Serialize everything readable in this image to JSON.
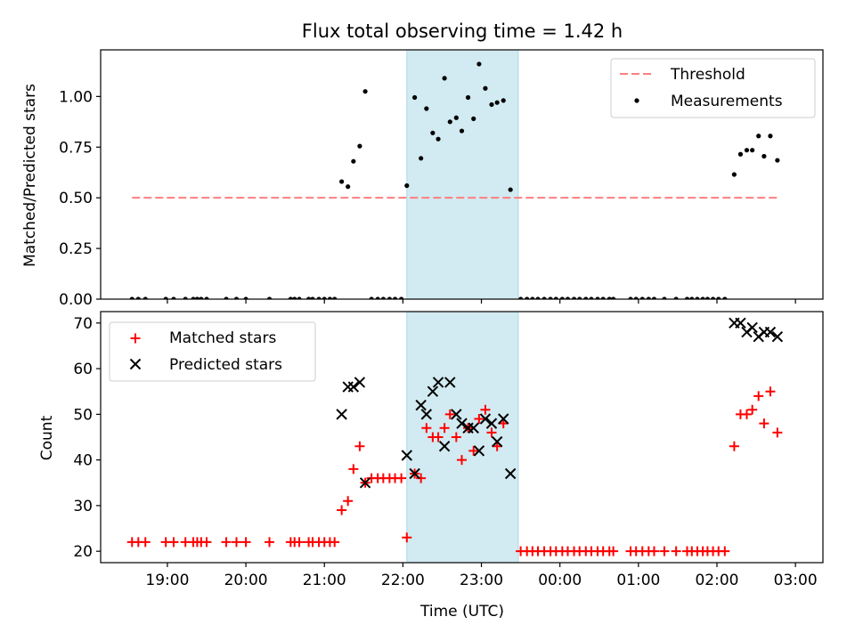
{
  "chart_data": {
    "title": "Flux total observing time = 1.42 h",
    "xlabel": "Time (UTC)",
    "x_ticks": [
      "19:00",
      "20:00",
      "21:00",
      "22:00",
      "23:00",
      "00:00",
      "01:00",
      "02:00",
      "03:00"
    ],
    "x_tick_hours": [
      19,
      20,
      21,
      22,
      23,
      24,
      25,
      26,
      27
    ],
    "xlim_hours": [
      18.15,
      27.35
    ],
    "shaded_region_hours": [
      22.05,
      23.47
    ],
    "colors": {
      "shade": "#add8e6",
      "threshold": "#ff7f7f",
      "matched": "#ff0000",
      "predicted": "#000000",
      "measurement": "#000000"
    },
    "top": {
      "type": "scatter",
      "ylabel": "Matched/Predicted stars",
      "ylim": [
        0,
        1.23
      ],
      "y_ticks": [
        "0.00",
        "0.25",
        "0.50",
        "0.75",
        "1.00"
      ],
      "y_tick_values": [
        0,
        0.25,
        0.5,
        0.75,
        1.0
      ],
      "threshold": {
        "name": "Threshold",
        "value": 0.5,
        "x_range_hours": [
          18.55,
          26.8
        ]
      },
      "legend": [
        "Threshold",
        "Measurements"
      ],
      "legend_position": "top-right",
      "series": [
        {
          "name": "Measurements",
          "points": [
            [
              18.55,
              0
            ],
            [
              18.63,
              0
            ],
            [
              18.72,
              0
            ],
            [
              18.98,
              0
            ],
            [
              19.08,
              0
            ],
            [
              19.23,
              0
            ],
            [
              19.33,
              0
            ],
            [
              19.38,
              0
            ],
            [
              19.43,
              0
            ],
            [
              19.5,
              0
            ],
            [
              19.75,
              0
            ],
            [
              19.88,
              0
            ],
            [
              20.0,
              0
            ],
            [
              20.3,
              0
            ],
            [
              20.57,
              0
            ],
            [
              20.62,
              0
            ],
            [
              20.68,
              0
            ],
            [
              20.8,
              0
            ],
            [
              20.85,
              0
            ],
            [
              20.93,
              0
            ],
            [
              21.0,
              0
            ],
            [
              21.07,
              0
            ],
            [
              21.13,
              0
            ],
            [
              21.22,
              0.58
            ],
            [
              21.3,
              0.555
            ],
            [
              21.37,
              0.68
            ],
            [
              21.45,
              0.755
            ],
            [
              21.52,
              1.025
            ],
            [
              21.6,
              0
            ],
            [
              21.68,
              0
            ],
            [
              21.75,
              0
            ],
            [
              21.83,
              0
            ],
            [
              21.9,
              0
            ],
            [
              21.98,
              0
            ],
            [
              22.05,
              0.56
            ],
            [
              22.15,
              0.995
            ],
            [
              22.23,
              0.695
            ],
            [
              22.3,
              0.94
            ],
            [
              22.38,
              0.82
            ],
            [
              22.45,
              0.79
            ],
            [
              22.53,
              1.09
            ],
            [
              22.6,
              0.875
            ],
            [
              22.68,
              0.895
            ],
            [
              22.75,
              0.83
            ],
            [
              22.83,
              0.995
            ],
            [
              22.9,
              0.89
            ],
            [
              22.97,
              1.16
            ],
            [
              23.05,
              1.04
            ],
            [
              23.13,
              0.96
            ],
            [
              23.2,
              0.97
            ],
            [
              23.28,
              0.98
            ],
            [
              23.37,
              0.54
            ],
            [
              23.5,
              0
            ],
            [
              23.58,
              0
            ],
            [
              23.65,
              0
            ],
            [
              23.72,
              0
            ],
            [
              23.8,
              0
            ],
            [
              23.88,
              0
            ],
            [
              23.95,
              0
            ],
            [
              24.03,
              0
            ],
            [
              24.1,
              0
            ],
            [
              24.18,
              0
            ],
            [
              24.25,
              0
            ],
            [
              24.33,
              0
            ],
            [
              24.4,
              0
            ],
            [
              24.48,
              0
            ],
            [
              24.55,
              0
            ],
            [
              24.63,
              0
            ],
            [
              24.68,
              0
            ],
            [
              24.9,
              0
            ],
            [
              24.97,
              0
            ],
            [
              25.05,
              0
            ],
            [
              25.13,
              0
            ],
            [
              25.2,
              0
            ],
            [
              25.33,
              0
            ],
            [
              25.48,
              0
            ],
            [
              25.62,
              0
            ],
            [
              25.68,
              0
            ],
            [
              25.75,
              0
            ],
            [
              25.82,
              0
            ],
            [
              25.88,
              0
            ],
            [
              25.95,
              0
            ],
            [
              26.02,
              0
            ],
            [
              26.1,
              0
            ],
            [
              26.22,
              0.615
            ],
            [
              26.3,
              0.715
            ],
            [
              26.38,
              0.735
            ],
            [
              26.45,
              0.735
            ],
            [
              26.53,
              0.805
            ],
            [
              26.6,
              0.705
            ],
            [
              26.68,
              0.805
            ],
            [
              26.77,
              0.685
            ]
          ]
        }
      ]
    },
    "bottom": {
      "type": "scatter",
      "ylabel": "Count",
      "ylim": [
        17.5,
        72.5
      ],
      "y_ticks": [
        "20",
        "30",
        "40",
        "50",
        "60",
        "70"
      ],
      "y_tick_values": [
        20,
        30,
        40,
        50,
        60,
        70
      ],
      "legend": [
        "Matched stars",
        "Predicted stars"
      ],
      "legend_position": "top-left",
      "series": [
        {
          "name": "Matched stars",
          "marker": "plus",
          "points": [
            [
              18.55,
              22
            ],
            [
              18.63,
              22
            ],
            [
              18.72,
              22
            ],
            [
              18.98,
              22
            ],
            [
              19.08,
              22
            ],
            [
              19.23,
              22
            ],
            [
              19.33,
              22
            ],
            [
              19.38,
              22
            ],
            [
              19.43,
              22
            ],
            [
              19.5,
              22
            ],
            [
              19.75,
              22
            ],
            [
              19.88,
              22
            ],
            [
              20.0,
              22
            ],
            [
              20.3,
              22
            ],
            [
              20.57,
              22
            ],
            [
              20.62,
              22
            ],
            [
              20.68,
              22
            ],
            [
              20.8,
              22
            ],
            [
              20.85,
              22
            ],
            [
              20.93,
              22
            ],
            [
              21.0,
              22
            ],
            [
              21.07,
              22
            ],
            [
              21.13,
              22
            ],
            [
              21.22,
              29
            ],
            [
              21.3,
              31
            ],
            [
              21.37,
              38
            ],
            [
              21.45,
              43
            ],
            [
              21.52,
              35
            ],
            [
              21.6,
              36
            ],
            [
              21.68,
              36
            ],
            [
              21.75,
              36
            ],
            [
              21.83,
              36
            ],
            [
              21.9,
              36
            ],
            [
              21.98,
              36
            ],
            [
              22.05,
              23
            ],
            [
              22.15,
              37
            ],
            [
              22.23,
              36
            ],
            [
              22.3,
              47
            ],
            [
              22.38,
              45
            ],
            [
              22.45,
              45
            ],
            [
              22.53,
              47
            ],
            [
              22.6,
              50
            ],
            [
              22.68,
              45
            ],
            [
              22.75,
              40
            ],
            [
              22.83,
              47
            ],
            [
              22.9,
              42
            ],
            [
              22.97,
              49
            ],
            [
              23.05,
              51
            ],
            [
              23.13,
              46
            ],
            [
              23.2,
              43
            ],
            [
              23.28,
              48
            ],
            [
              23.5,
              20
            ],
            [
              23.58,
              20
            ],
            [
              23.65,
              20
            ],
            [
              23.72,
              20
            ],
            [
              23.8,
              20
            ],
            [
              23.88,
              20
            ],
            [
              23.95,
              20
            ],
            [
              24.03,
              20
            ],
            [
              24.1,
              20
            ],
            [
              24.18,
              20
            ],
            [
              24.25,
              20
            ],
            [
              24.33,
              20
            ],
            [
              24.4,
              20
            ],
            [
              24.48,
              20
            ],
            [
              24.55,
              20
            ],
            [
              24.63,
              20
            ],
            [
              24.68,
              20
            ],
            [
              24.9,
              20
            ],
            [
              24.97,
              20
            ],
            [
              25.05,
              20
            ],
            [
              25.13,
              20
            ],
            [
              25.2,
              20
            ],
            [
              25.33,
              20
            ],
            [
              25.48,
              20
            ],
            [
              25.62,
              20
            ],
            [
              25.68,
              20
            ],
            [
              25.75,
              20
            ],
            [
              25.82,
              20
            ],
            [
              25.88,
              20
            ],
            [
              25.95,
              20
            ],
            [
              26.02,
              20
            ],
            [
              26.1,
              20
            ],
            [
              26.22,
              43
            ],
            [
              26.3,
              50
            ],
            [
              26.38,
              50
            ],
            [
              26.45,
              51
            ],
            [
              26.53,
              54
            ],
            [
              26.6,
              48
            ],
            [
              26.68,
              55
            ],
            [
              26.77,
              46
            ]
          ]
        },
        {
          "name": "Predicted stars",
          "marker": "x",
          "points": [
            [
              21.22,
              50
            ],
            [
              21.3,
              56
            ],
            [
              21.37,
              56
            ],
            [
              21.45,
              57
            ],
            [
              21.52,
              35
            ],
            [
              22.05,
              41
            ],
            [
              22.15,
              37
            ],
            [
              22.23,
              52
            ],
            [
              22.3,
              50
            ],
            [
              22.38,
              55
            ],
            [
              22.45,
              57
            ],
            [
              22.53,
              43
            ],
            [
              22.6,
              57
            ],
            [
              22.68,
              50
            ],
            [
              22.75,
              48
            ],
            [
              22.83,
              47
            ],
            [
              22.9,
              47
            ],
            [
              22.97,
              42
            ],
            [
              23.05,
              49
            ],
            [
              23.13,
              48
            ],
            [
              23.2,
              44
            ],
            [
              23.28,
              49
            ],
            [
              23.37,
              37
            ],
            [
              26.22,
              70
            ],
            [
              26.3,
              70
            ],
            [
              26.38,
              68
            ],
            [
              26.45,
              69
            ],
            [
              26.53,
              67
            ],
            [
              26.6,
              68
            ],
            [
              26.68,
              68
            ],
            [
              26.77,
              67
            ]
          ]
        }
      ]
    }
  }
}
